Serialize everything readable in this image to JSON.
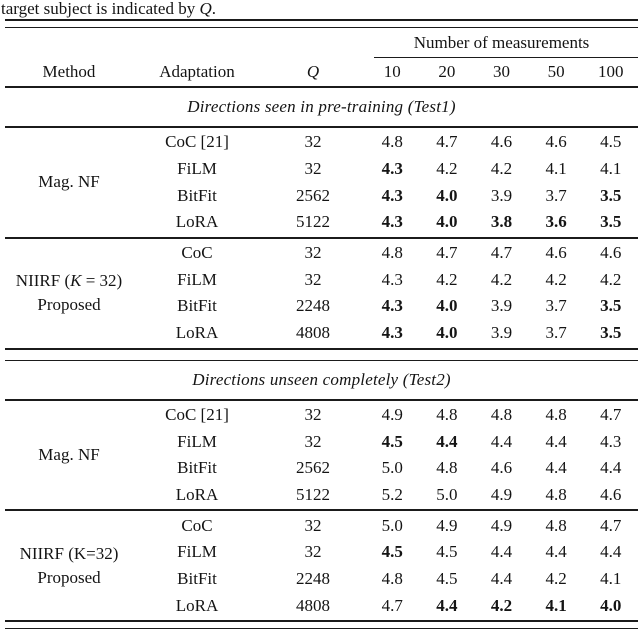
{
  "caption": {
    "prefix": "target subject is indicated by ",
    "q": "Q",
    "suffix": "."
  },
  "table": {
    "spanner": "Number of measurements",
    "columns": {
      "method": "Method",
      "adaptation": "Adaptation",
      "q": "Q",
      "measurements": [
        "10",
        "20",
        "30",
        "50",
        "100"
      ]
    },
    "sections": [
      {
        "title": "Directions seen in pre-training (Test1)",
        "groups": [
          {
            "method_lines": [
              [
                "Mag. NF"
              ]
            ],
            "rows": [
              {
                "adaptation": "CoC [21]",
                "q": "32",
                "values": [
                  "4.8",
                  "4.7",
                  "4.6",
                  "4.6",
                  "4.5"
                ],
                "bold": [
                  0,
                  0,
                  0,
                  0,
                  0
                ]
              },
              {
                "adaptation": "FiLM",
                "q": "32",
                "values": [
                  "4.3",
                  "4.2",
                  "4.2",
                  "4.1",
                  "4.1"
                ],
                "bold": [
                  1,
                  0,
                  0,
                  0,
                  0
                ]
              },
              {
                "adaptation": "BitFit",
                "q": "2562",
                "values": [
                  "4.3",
                  "4.0",
                  "3.9",
                  "3.7",
                  "3.5"
                ],
                "bold": [
                  1,
                  1,
                  0,
                  0,
                  1
                ]
              },
              {
                "adaptation": "LoRA",
                "q": "5122",
                "values": [
                  "4.3",
                  "4.0",
                  "3.8",
                  "3.6",
                  "3.5"
                ],
                "bold": [
                  1,
                  1,
                  1,
                  1,
                  1
                ]
              }
            ]
          },
          {
            "method_lines": [
              [
                "NIIRF (",
                "K",
                " = 32)"
              ],
              [
                "Proposed"
              ]
            ],
            "rows": [
              {
                "adaptation": "CoC",
                "q": "32",
                "values": [
                  "4.8",
                  "4.7",
                  "4.7",
                  "4.6",
                  "4.6"
                ],
                "bold": [
                  0,
                  0,
                  0,
                  0,
                  0
                ]
              },
              {
                "adaptation": "FiLM",
                "q": "32",
                "values": [
                  "4.3",
                  "4.2",
                  "4.2",
                  "4.2",
                  "4.2"
                ],
                "bold": [
                  0,
                  0,
                  0,
                  0,
                  0
                ]
              },
              {
                "adaptation": "BitFit",
                "q": "2248",
                "values": [
                  "4.3",
                  "4.0",
                  "3.9",
                  "3.7",
                  "3.5"
                ],
                "bold": [
                  1,
                  1,
                  0,
                  0,
                  1
                ]
              },
              {
                "adaptation": "LoRA",
                "q": "4808",
                "values": [
                  "4.3",
                  "4.0",
                  "3.9",
                  "3.7",
                  "3.5"
                ],
                "bold": [
                  1,
                  1,
                  0,
                  0,
                  1
                ]
              }
            ]
          }
        ]
      },
      {
        "title": "Directions unseen completely (Test2)",
        "groups": [
          {
            "method_lines": [
              [
                "Mag. NF"
              ]
            ],
            "rows": [
              {
                "adaptation": "CoC [21]",
                "q": "32",
                "values": [
                  "4.9",
                  "4.8",
                  "4.8",
                  "4.8",
                  "4.7"
                ],
                "bold": [
                  0,
                  0,
                  0,
                  0,
                  0
                ]
              },
              {
                "adaptation": "FiLM",
                "q": "32",
                "values": [
                  "4.5",
                  "4.4",
                  "4.4",
                  "4.4",
                  "4.3"
                ],
                "bold": [
                  1,
                  1,
                  0,
                  0,
                  0
                ]
              },
              {
                "adaptation": "BitFit",
                "q": "2562",
                "values": [
                  "5.0",
                  "4.8",
                  "4.6",
                  "4.4",
                  "4.4"
                ],
                "bold": [
                  0,
                  0,
                  0,
                  0,
                  0
                ]
              },
              {
                "adaptation": "LoRA",
                "q": "5122",
                "values": [
                  "5.2",
                  "5.0",
                  "4.9",
                  "4.8",
                  "4.6"
                ],
                "bold": [
                  0,
                  0,
                  0,
                  0,
                  0
                ]
              }
            ]
          },
          {
            "method_lines": [
              [
                "NIIRF (K=32)"
              ],
              [
                "Proposed"
              ]
            ],
            "rows": [
              {
                "adaptation": "CoC",
                "q": "32",
                "values": [
                  "5.0",
                  "4.9",
                  "4.9",
                  "4.8",
                  "4.7"
                ],
                "bold": [
                  0,
                  0,
                  0,
                  0,
                  0
                ]
              },
              {
                "adaptation": "FiLM",
                "q": "32",
                "values": [
                  "4.5",
                  "4.5",
                  "4.4",
                  "4.4",
                  "4.4"
                ],
                "bold": [
                  1,
                  0,
                  0,
                  0,
                  0
                ]
              },
              {
                "adaptation": "BitFit",
                "q": "2248",
                "values": [
                  "4.8",
                  "4.5",
                  "4.4",
                  "4.2",
                  "4.1"
                ],
                "bold": [
                  0,
                  0,
                  0,
                  0,
                  0
                ]
              },
              {
                "adaptation": "LoRA",
                "q": "4808",
                "values": [
                  "4.7",
                  "4.4",
                  "4.2",
                  "4.1",
                  "4.0"
                ],
                "bold": [
                  0,
                  1,
                  1,
                  1,
                  1
                ]
              }
            ]
          }
        ]
      }
    ]
  }
}
